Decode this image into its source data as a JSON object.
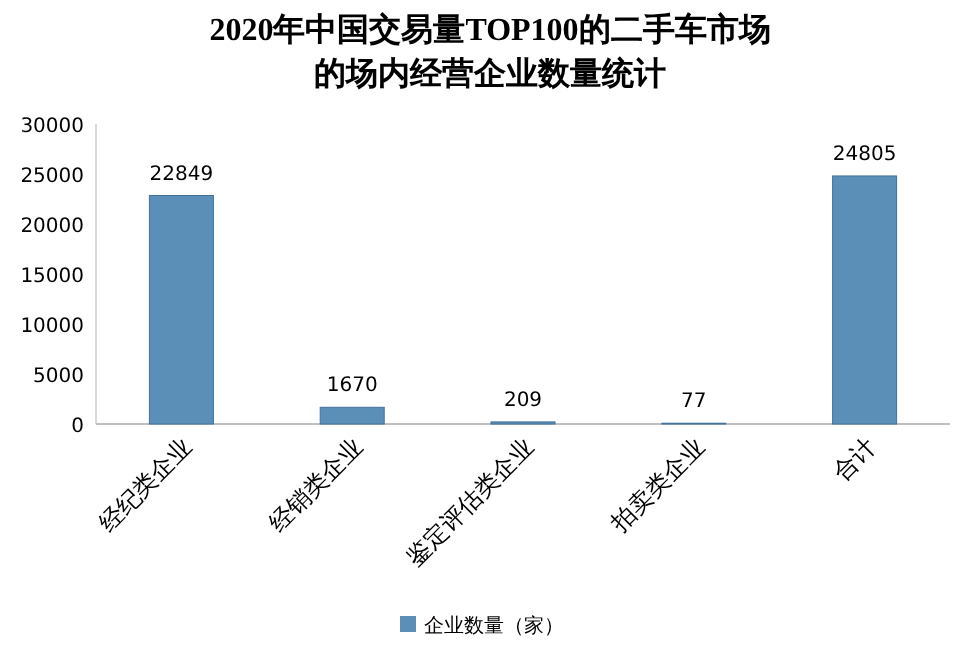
{
  "chart_data": {
    "type": "bar",
    "title": "2020年中国交易量TOP100的二手车市场的场内经营企业数量统计",
    "categories": [
      "经纪类企业",
      "经销类企业",
      "鉴定评估类企业",
      "拍卖类企业",
      "合计"
    ],
    "series": [
      {
        "name": "企业数量（家）",
        "color": "#5b8fb8",
        "values": [
          22849,
          1670,
          209,
          77,
          24805
        ]
      }
    ],
    "ylim": [
      0,
      30000
    ],
    "yticks": [
      0,
      5000,
      10000,
      15000,
      20000,
      25000,
      30000
    ],
    "data_labels": true,
    "legend": "bottom"
  }
}
